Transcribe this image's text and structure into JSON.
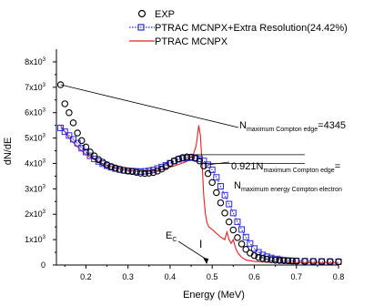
{
  "chart_data": {
    "type": "scatter",
    "xlabel": "Energy (MeV)",
    "ylabel": "dN/dE",
    "xlim": [
      0.13,
      0.8
    ],
    "ylim": [
      0,
      8500
    ],
    "x_ticks": [
      0.2,
      0.3,
      0.4,
      0.5,
      0.6,
      0.7,
      0.8
    ],
    "x_tick_labels": [
      "0.2",
      "0.3",
      "0.4",
      "0.5",
      "0.6",
      "0.7",
      "0.8"
    ],
    "y_ticks": [
      0,
      1000,
      2000,
      3000,
      4000,
      5000,
      6000,
      7000,
      8000
    ],
    "y_tick_labels": [
      {
        "mant": "0",
        "exp": ""
      },
      {
        "mant": "1x10",
        "exp": "3"
      },
      {
        "mant": "2x10",
        "exp": "3"
      },
      {
        "mant": "3x10",
        "exp": "3"
      },
      {
        "mant": "4x10",
        "exp": "3"
      },
      {
        "mant": "5x10",
        "exp": "3"
      },
      {
        "mant": "6x10",
        "exp": "3"
      },
      {
        "mant": "7x10",
        "exp": "3"
      },
      {
        "mant": "8x10",
        "exp": "3"
      }
    ],
    "legend_position": "top-center",
    "series": [
      {
        "name": "EXP",
        "style": "open-circle",
        "color": "#000000",
        "x": [
          0.14,
          0.15,
          0.16,
          0.17,
          0.18,
          0.19,
          0.2,
          0.21,
          0.22,
          0.23,
          0.24,
          0.25,
          0.26,
          0.27,
          0.28,
          0.29,
          0.3,
          0.31,
          0.32,
          0.33,
          0.34,
          0.35,
          0.36,
          0.37,
          0.38,
          0.39,
          0.4,
          0.41,
          0.42,
          0.43,
          0.44,
          0.45,
          0.46,
          0.47,
          0.48,
          0.49,
          0.5,
          0.51,
          0.52,
          0.53,
          0.54,
          0.55,
          0.56,
          0.57,
          0.58,
          0.59,
          0.6,
          0.61,
          0.62,
          0.63,
          0.64,
          0.65,
          0.66,
          0.67,
          0.68,
          0.69,
          0.7,
          0.72,
          0.74,
          0.76,
          0.78,
          0.8
        ],
        "y": [
          7100,
          6350,
          6000,
          5600,
          5200,
          4900,
          4650,
          4450,
          4300,
          4150,
          4050,
          3950,
          3880,
          3820,
          3770,
          3730,
          3700,
          3680,
          3650,
          3620,
          3610,
          3620,
          3640,
          3700,
          3780,
          3880,
          4000,
          4100,
          4180,
          4230,
          4260,
          4250,
          4200,
          4100,
          3900,
          3600,
          3250,
          2850,
          2450,
          2050,
          1700,
          1380,
          1080,
          830,
          620,
          470,
          370,
          300,
          260,
          230,
          210,
          190,
          180,
          170,
          165,
          160,
          155,
          150,
          145,
          140,
          135,
          130
        ]
      },
      {
        "name": "PTRAC MCNPX+Extra Resolution(24.42%)",
        "style": "dotted-open-square",
        "color": "#2a2adc",
        "x": [
          0.14,
          0.15,
          0.16,
          0.17,
          0.18,
          0.19,
          0.2,
          0.21,
          0.22,
          0.23,
          0.24,
          0.25,
          0.26,
          0.27,
          0.28,
          0.29,
          0.3,
          0.31,
          0.32,
          0.33,
          0.34,
          0.35,
          0.36,
          0.37,
          0.38,
          0.39,
          0.4,
          0.41,
          0.42,
          0.43,
          0.44,
          0.45,
          0.46,
          0.47,
          0.48,
          0.49,
          0.5,
          0.51,
          0.52,
          0.53,
          0.54,
          0.55,
          0.56,
          0.57,
          0.58,
          0.59,
          0.6,
          0.61,
          0.62,
          0.63,
          0.64,
          0.65,
          0.66,
          0.67,
          0.68,
          0.69,
          0.7,
          0.72,
          0.74,
          0.76,
          0.78,
          0.8
        ],
        "y": [
          5400,
          5250,
          5100,
          4950,
          4800,
          4600,
          4450,
          4300,
          4180,
          4080,
          3990,
          3910,
          3850,
          3800,
          3760,
          3730,
          3710,
          3700,
          3690,
          3680,
          3690,
          3710,
          3740,
          3800,
          3860,
          3930,
          4010,
          4090,
          4160,
          4200,
          4220,
          4230,
          4220,
          4180,
          4100,
          3950,
          3750,
          3450,
          3100,
          2750,
          2400,
          2050,
          1700,
          1400,
          1100,
          850,
          650,
          500,
          400,
          330,
          280,
          240,
          210,
          190,
          175,
          165,
          160,
          150,
          145,
          140,
          135,
          130
        ]
      },
      {
        "name": "PTRAC MCNPX",
        "style": "line",
        "color": "#e82020",
        "x": [
          0.14,
          0.16,
          0.18,
          0.2,
          0.22,
          0.24,
          0.26,
          0.28,
          0.3,
          0.32,
          0.34,
          0.36,
          0.38,
          0.4,
          0.42,
          0.44,
          0.455,
          0.462,
          0.468,
          0.472,
          0.476,
          0.48,
          0.484,
          0.488,
          0.492,
          0.5,
          0.51,
          0.52,
          0.525,
          0.53,
          0.535,
          0.54,
          0.545,
          0.55,
          0.555,
          0.56,
          0.565,
          0.57,
          0.58,
          0.6,
          0.62,
          0.64,
          0.655,
          0.66,
          0.665,
          0.67,
          0.68,
          0.7,
          0.72,
          0.74,
          0.76,
          0.78,
          0.8
        ],
        "y": [
          5500,
          5000,
          4650,
          4350,
          4150,
          3980,
          3880,
          3800,
          3740,
          3690,
          3680,
          3700,
          3760,
          3850,
          3960,
          4080,
          4350,
          4700,
          5500,
          5100,
          4000,
          2700,
          2000,
          1650,
          1500,
          1400,
          1250,
          1100,
          1050,
          1000,
          1300,
          1000,
          850,
          1000,
          700,
          500,
          400,
          300,
          200,
          140,
          120,
          110,
          130,
          350,
          150,
          110,
          100,
          95,
          90,
          85,
          80,
          80,
          80
        ]
      }
    ],
    "annotations": {
      "max_edge": {
        "base": "N",
        "sub": "maximum Compton edge",
        "value": "=4345"
      },
      "ratio": {
        "coef": "0.921N",
        "sub": "maximum Compton edge",
        "tail": "="
      },
      "electron": {
        "base": "N",
        "sub": "maximum energy Compton electron"
      },
      "ec": {
        "base": "E",
        "sub": "C"
      },
      "cursor_glyph": "I"
    }
  }
}
